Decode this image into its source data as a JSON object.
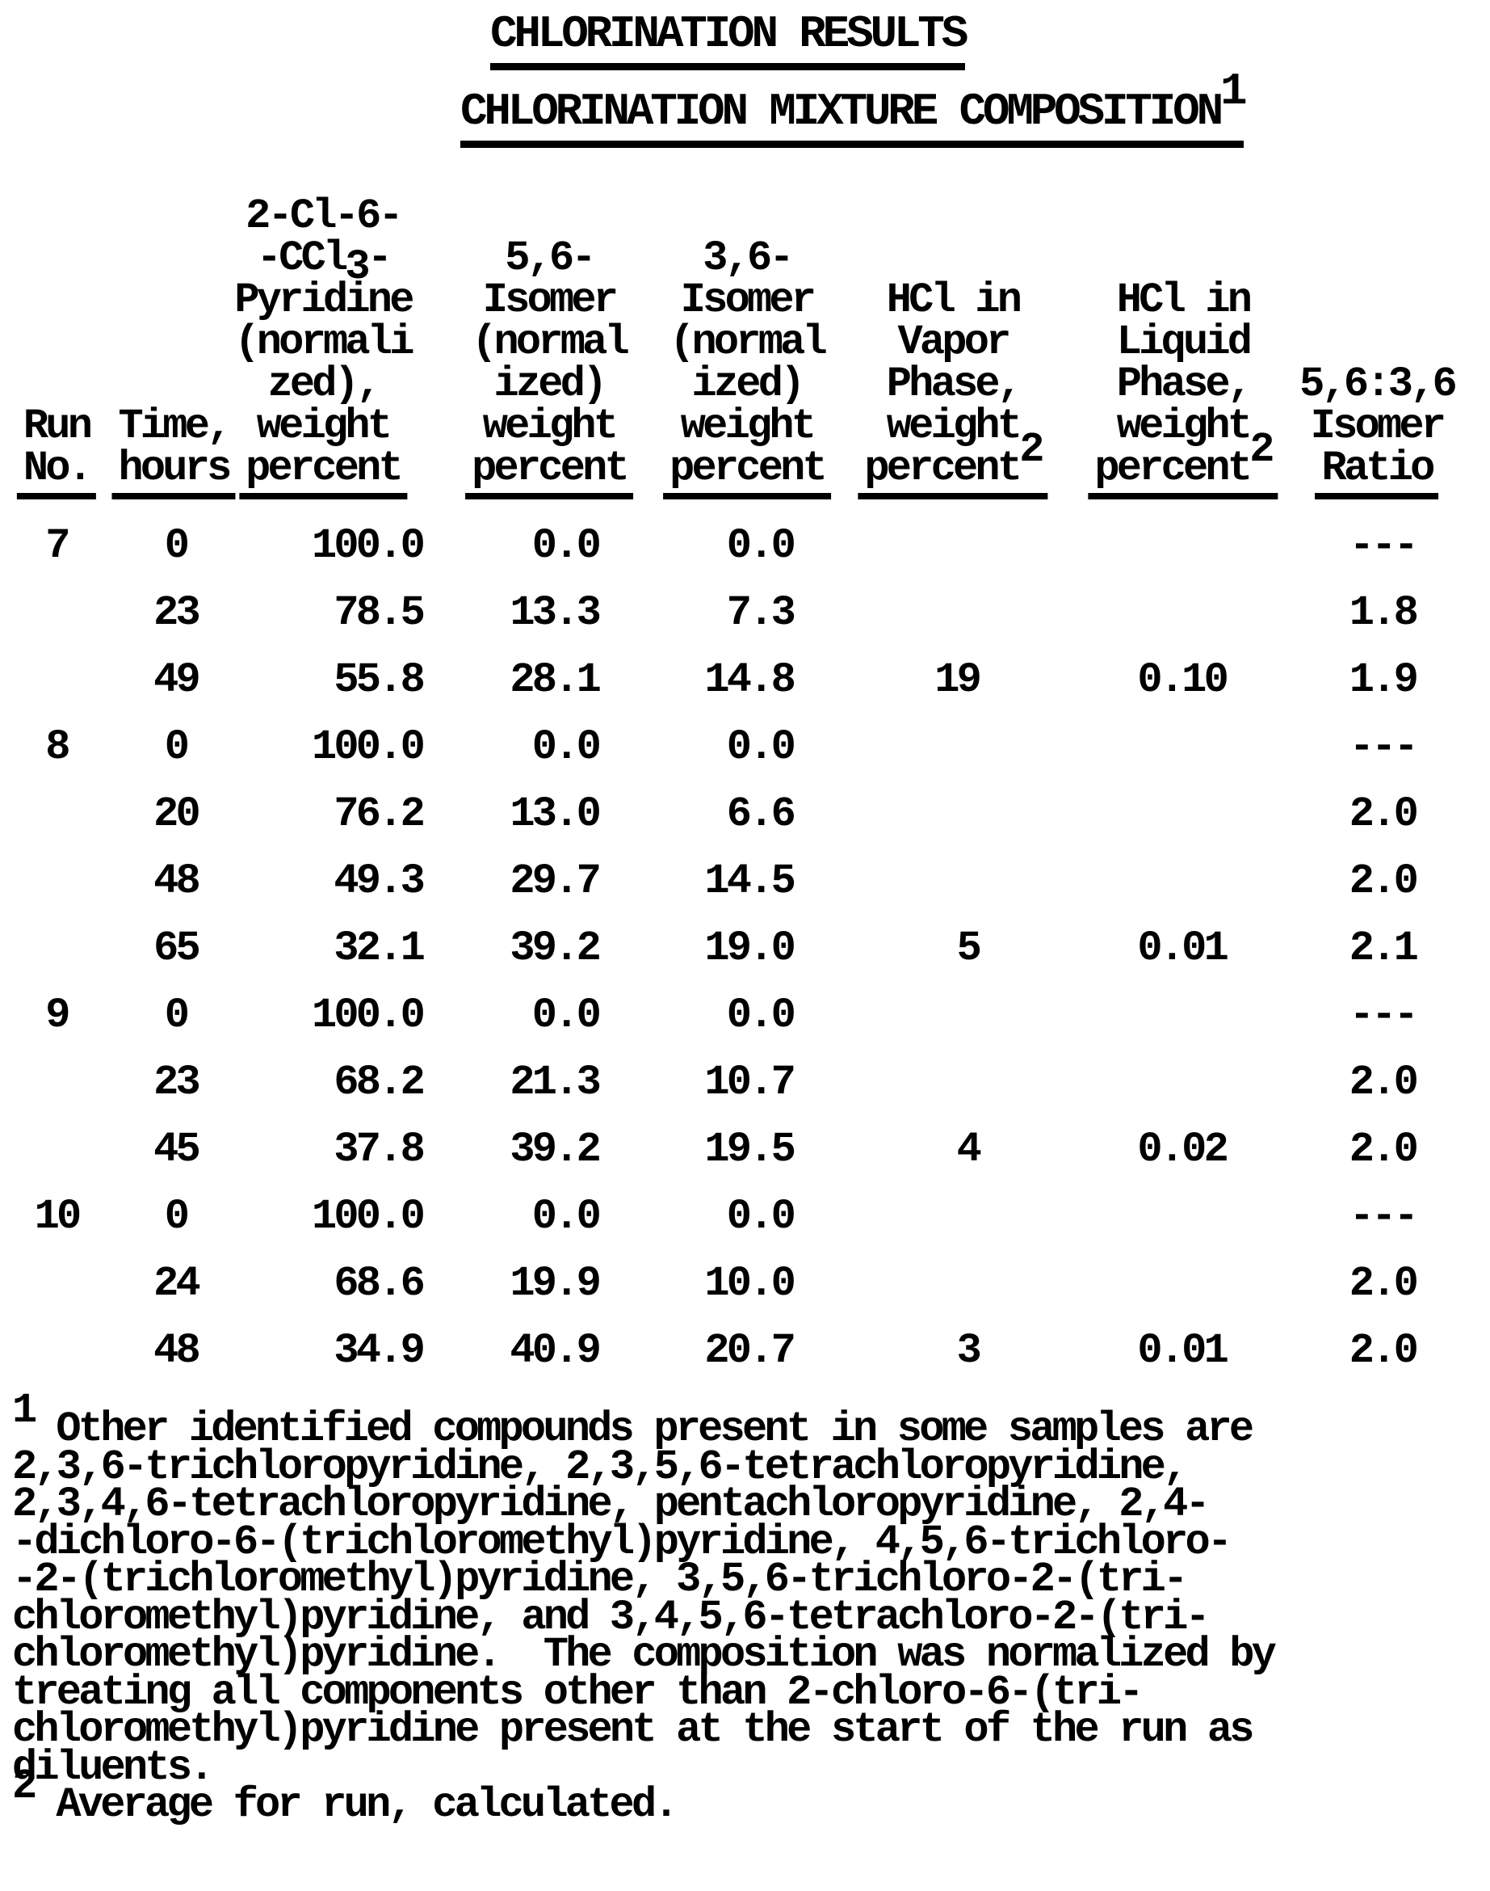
{
  "colors": {
    "ink": "#000000",
    "paper": "#ffffff"
  },
  "titles": {
    "main": "CHLORINATION RESULTS",
    "sub": "CHLORINATION MIXTURE COMPOSITION",
    "sub_sup": "1"
  },
  "table": {
    "header": {
      "c1": {
        "l1": "Run",
        "l2": "No."
      },
      "c2": {
        "l1": "Time,",
        "l2": "hours"
      },
      "c3": {
        "l1": "2-Cl-6-",
        "l2pre": "-CCl",
        "l2sub": "3",
        "l2post": "-",
        "l3": "Pyridine",
        "l4": "(normali",
        "l5": "zed),",
        "l6": "weight",
        "l7": "percent"
      },
      "c4": {
        "l1": "5,6-",
        "l2": "Isomer",
        "l3": "(normal",
        "l4": "ized)",
        "l5": "weight",
        "l6": "percent"
      },
      "c5": {
        "l1": "3,6-",
        "l2": "Isomer",
        "l3": "(normal",
        "l4": "ized)",
        "l5": "weight",
        "l6": "percent"
      },
      "c6": {
        "l1": "HCl in",
        "l2": "Vapor",
        "l3": "Phase,",
        "l4": "weight",
        "l5": "percent",
        "sup": "2"
      },
      "c7": {
        "l1": "HCl in",
        "l2": "Liquid",
        "l3": "Phase,",
        "l4": "weight",
        "l5": "percent",
        "sup": "2"
      },
      "c8": {
        "l1": "5,6:3,6",
        "l2": "Isomer",
        "l3": "Ratio"
      }
    },
    "rows": [
      [
        "7",
        "0",
        "100.0",
        "0.0",
        "0.0",
        "",
        "",
        "---"
      ],
      [
        "",
        "23",
        "78.5",
        "13.3",
        "7.3",
        "",
        "",
        "1.8"
      ],
      [
        "",
        "49",
        "55.8",
        "28.1",
        "14.8",
        "19",
        "0.10",
        "1.9"
      ],
      [
        "8",
        "0",
        "100.0",
        "0.0",
        "0.0",
        "",
        "",
        "---"
      ],
      [
        "",
        "20",
        "76.2",
        "13.0",
        "6.6",
        "",
        "",
        "2.0"
      ],
      [
        "",
        "48",
        "49.3",
        "29.7",
        "14.5",
        "",
        "",
        "2.0"
      ],
      [
        "",
        "65",
        "32.1",
        "39.2",
        "19.0",
        "5",
        "0.01",
        "2.1"
      ],
      [
        "9",
        "0",
        "100.0",
        "0.0",
        "0.0",
        "",
        "",
        "---"
      ],
      [
        "",
        "23",
        "68.2",
        "21.3",
        "10.7",
        "",
        "",
        "2.0"
      ],
      [
        "",
        "45",
        "37.8",
        "39.2",
        "19.5",
        "4",
        "0.02",
        "2.0"
      ],
      [
        "10",
        "0",
        "100.0",
        "0.0",
        "0.0",
        "",
        "",
        "---"
      ],
      [
        "",
        "24",
        "68.6",
        "19.9",
        "10.0",
        "",
        "",
        "2.0"
      ],
      [
        "",
        "48",
        "34.9",
        "40.9",
        "20.7",
        "3",
        "0.01",
        "2.0"
      ]
    ]
  },
  "footnote1": {
    "marker": "1",
    "lines": [
      "Other identified compounds present in some samples are",
      "2,3,6-trichloropyridine, 2,3,5,6-tetrachloropyridine,",
      "2,3,4,6-tetrachloropyridine, pentachloropyridine, 2,4-",
      "-dichloro-6-(trichloromethyl)pyridine, 4,5,6-trichloro-",
      "-2-(trichloromethyl)pyridine, 3,5,6-trichloro-2-(tri-",
      "chloromethyl)pyridine, and 3,4,5,6-tetrachloro-2-(tri-",
      "chloromethyl)pyridine.  The composition was normalized by",
      "treating all components other than 2-chloro-6-(tri-",
      "chloromethyl)pyridine present at the start of the run as",
      "diluents."
    ]
  },
  "footnote2": {
    "marker": "2",
    "text": "Average for run, calculated."
  }
}
